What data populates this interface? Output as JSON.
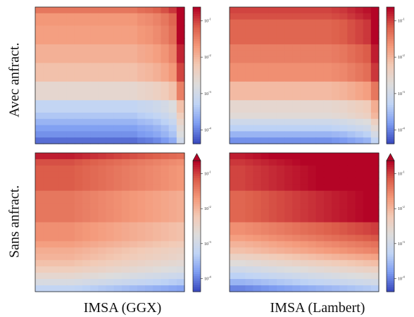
{
  "figure": {
    "row_labels": [
      "Avec anfract.",
      "Sans anfract."
    ],
    "col_labels": [
      "IMSA (GGX)",
      "IMSA (Lambert)"
    ],
    "colormap": "coolwarm",
    "colormap_stops": [
      "#3b4cc0",
      "#7f9ef2",
      "#c0d4f5",
      "#dddcdc",
      "#f2cbb7",
      "#f49a7b",
      "#dd5f4b",
      "#b40426"
    ]
  },
  "chart_data": [
    {
      "type": "heatmap",
      "row": "Avec anfract.",
      "column": "IMSA (GGX)",
      "scale": "log",
      "colorbar_ticks": [
        "10^-1",
        "10^-2",
        "10^-3",
        "10^-4"
      ],
      "colorbar_extend": "none",
      "band_levels": [
        0.8,
        0.72,
        0.72,
        0.7,
        0.7,
        0.7,
        0.65,
        0.65,
        0.65,
        0.6,
        0.6,
        0.6,
        0.48,
        0.48,
        0.48,
        0.3,
        0.3,
        0.25,
        0.2,
        0.15,
        0.12,
        0.06
      ],
      "column_boost": [
        0,
        0,
        0,
        0,
        0,
        0,
        0,
        0,
        0,
        0,
        0,
        0,
        0,
        0.02,
        0.03,
        0.05,
        0.08,
        0.12,
        0.3
      ]
    },
    {
      "type": "heatmap",
      "row": "Avec anfract.",
      "column": "IMSA (Lambert)",
      "scale": "log",
      "colorbar_ticks": [
        "10^-1",
        "10^-2",
        "10^-3",
        "10^-4"
      ],
      "colorbar_extend": "none",
      "band_levels": [
        0.9,
        0.88,
        0.84,
        0.84,
        0.84,
        0.84,
        0.78,
        0.78,
        0.78,
        0.74,
        0.74,
        0.74,
        0.62,
        0.62,
        0.62,
        0.48,
        0.48,
        0.45,
        0.35,
        0.28,
        0.2,
        0.12
      ],
      "column_boost": [
        0,
        0,
        0,
        0,
        0,
        0,
        0,
        0,
        0,
        0,
        0,
        0,
        0,
        0.01,
        0.02,
        0.04,
        0.06,
        0.08,
        0.18
      ]
    },
    {
      "type": "heatmap",
      "row": "Sans anfract.",
      "column": "IMSA (GGX)",
      "scale": "log",
      "colorbar_ticks": [
        "10^-1",
        "10^-2",
        "10^-3",
        "10^-4"
      ],
      "colorbar_extend": "max",
      "band_levels": [
        0.96,
        0.88,
        0.86,
        0.86,
        0.86,
        0.86,
        0.8,
        0.8,
        0.8,
        0.8,
        0.8,
        0.74,
        0.74,
        0.74,
        0.7,
        0.66,
        0.64,
        0.6,
        0.55,
        0.48,
        0.4,
        0.3
      ],
      "column_boost": [
        0,
        0,
        0,
        0,
        0,
        -0.01,
        -0.02,
        -0.03,
        -0.04,
        -0.05,
        -0.06,
        -0.07,
        -0.08,
        -0.09,
        -0.1,
        -0.11,
        -0.12,
        -0.13,
        -0.14
      ]
    },
    {
      "type": "heatmap",
      "row": "Sans anfract.",
      "column": "IMSA (Lambert)",
      "scale": "log",
      "colorbar_ticks": [
        "10^-1",
        "10^-2",
        "10^-3",
        "10^-4"
      ],
      "colorbar_extend": "max",
      "band_levels": [
        0.96,
        0.92,
        0.9,
        0.9,
        0.9,
        0.9,
        0.84,
        0.84,
        0.84,
        0.84,
        0.84,
        0.74,
        0.74,
        0.7,
        0.64,
        0.6,
        0.52,
        0.44,
        0.36,
        0.28,
        0.2,
        0.1
      ],
      "column_boost": [
        0,
        0,
        0.01,
        0.02,
        0.03,
        0.04,
        0.05,
        0.06,
        0.07,
        0.08,
        0.09,
        0.1,
        0.11,
        0.12,
        0.13,
        0.14,
        0.15,
        0.16,
        0.17
      ]
    }
  ]
}
